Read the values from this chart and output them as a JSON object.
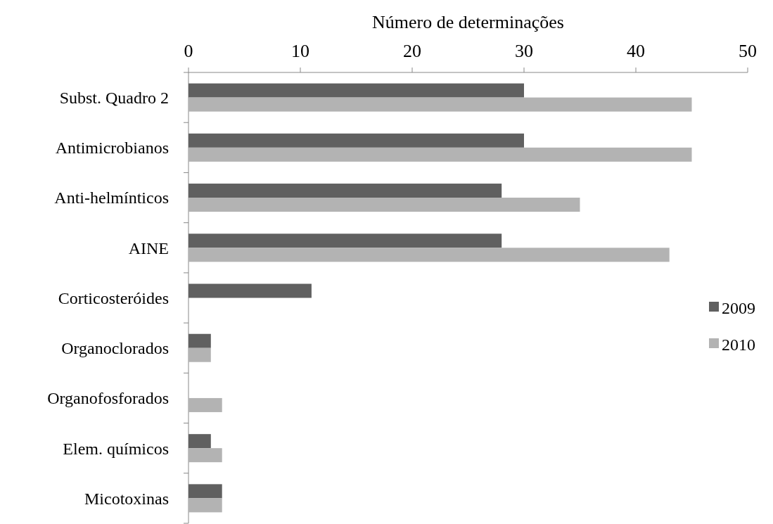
{
  "chart_data": {
    "type": "bar",
    "orientation": "horizontal",
    "xlabel": "Número de determinações",
    "categories": [
      "Subst. Quadro 2",
      "Antimicrobianos",
      "Anti-helmínticos",
      "AINE",
      "Corticosteróides",
      "Organoclorados",
      "Organofosforados",
      "Elem. químicos",
      "Micotoxinas"
    ],
    "series": [
      {
        "name": "2009",
        "color": "#606060",
        "values": [
          30,
          30,
          28,
          28,
          11,
          2,
          null,
          2,
          3
        ]
      },
      {
        "name": "2010",
        "color": "#b3b3b3",
        "values": [
          45,
          45,
          35,
          43,
          null,
          2,
          3,
          3,
          3
        ]
      }
    ],
    "xlim": [
      0,
      50
    ],
    "xticks": [
      0,
      10,
      20,
      30,
      40,
      50
    ],
    "legend": "right"
  }
}
